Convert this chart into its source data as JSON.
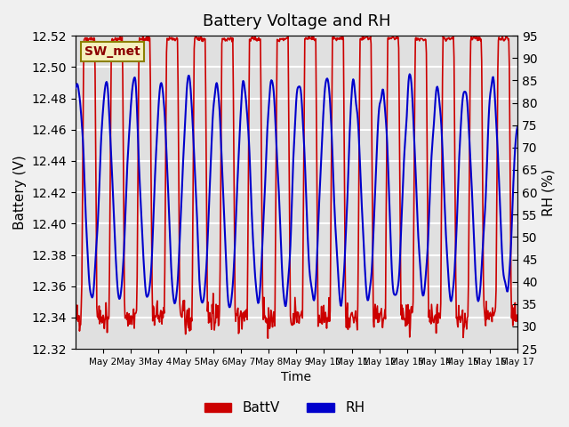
{
  "title": "Battery Voltage and RH",
  "xlabel": "Time",
  "ylabel_left": "Battery (V)",
  "ylabel_right": "RH (%)",
  "label_box": "SW_met",
  "ylim_left": [
    12.32,
    12.52
  ],
  "ylim_right": [
    25,
    95
  ],
  "yticks_left": [
    12.32,
    12.34,
    12.36,
    12.38,
    12.4,
    12.42,
    12.44,
    12.46,
    12.48,
    12.5,
    12.52
  ],
  "yticks_right": [
    25,
    30,
    35,
    40,
    45,
    50,
    55,
    60,
    65,
    70,
    75,
    80,
    85,
    90,
    95
  ],
  "x_tick_labels": [
    "May 2",
    "May 3",
    "May 4",
    "May 5",
    "May 6",
    "May 7",
    "May 8",
    "May 9",
    "May 10",
    "May 11",
    "May 12",
    "May 13",
    "May 14",
    "May 15",
    "May 16",
    "May 17"
  ],
  "batt_color": "#CC0000",
  "rh_color": "#0000CC",
  "bg_color": "#E0E0E0",
  "fig_color": "#F0F0F0",
  "legend_batt": "BattV",
  "legend_rh": "RH",
  "n_days": 16,
  "seed": 42
}
